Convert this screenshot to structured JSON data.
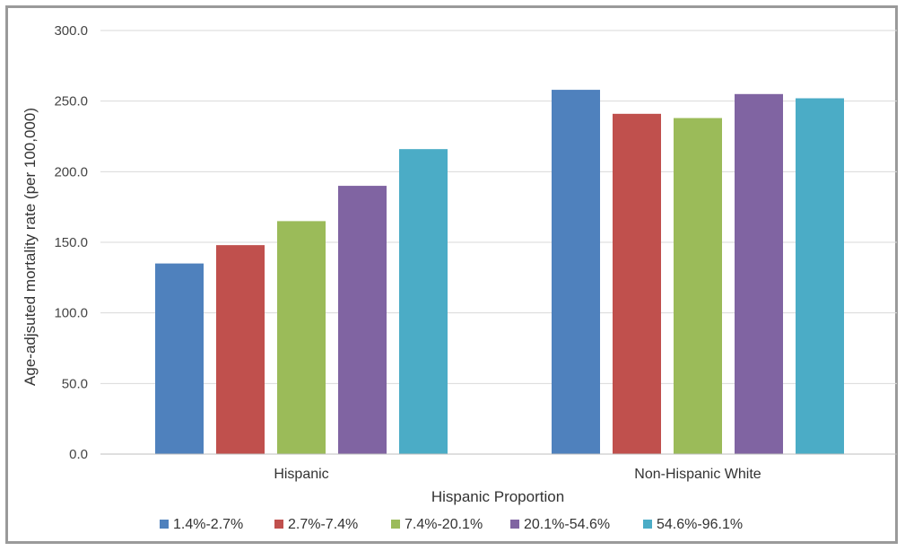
{
  "chart_data": {
    "type": "bar",
    "categories": [
      "Hispanic",
      "Non-Hispanic White"
    ],
    "series": [
      {
        "name": "1.4%-2.7%",
        "color": "#4f81bd",
        "values": [
          135,
          258
        ]
      },
      {
        "name": "2.7%-7.4%",
        "color": "#c0504d",
        "values": [
          148,
          241
        ]
      },
      {
        "name": "7.4%-20.1%",
        "color": "#9bbb59",
        "values": [
          165,
          238
        ]
      },
      {
        "name": "20.1%-54.6%",
        "color": "#8064a2",
        "values": [
          190,
          255
        ]
      },
      {
        "name": "54.6%-96.1%",
        "color": "#4bacc6",
        "values": [
          216,
          252
        ]
      }
    ],
    "xlabel": "Hispanic Proportion",
    "ylabel": "Age-adjsuted mortality rate (per 100,000)",
    "ylim": [
      0,
      300
    ],
    "yticks": [
      "0.0",
      "50.0",
      "100.0",
      "150.0",
      "200.0",
      "250.0",
      "300.0"
    ],
    "grid": true,
    "legend_position": "bottom"
  }
}
